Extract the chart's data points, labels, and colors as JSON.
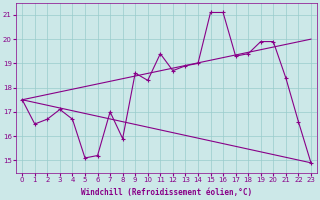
{
  "xlabel": "Windchill (Refroidissement éolien,°C)",
  "xlim": [
    -0.5,
    23.5
  ],
  "ylim": [
    14.5,
    21.5
  ],
  "yticks": [
    15,
    16,
    17,
    18,
    19,
    20,
    21
  ],
  "xticks": [
    0,
    1,
    2,
    3,
    4,
    5,
    6,
    7,
    8,
    9,
    10,
    11,
    12,
    13,
    14,
    15,
    16,
    17,
    18,
    19,
    20,
    21,
    22,
    23
  ],
  "background_color": "#cce8e8",
  "line_color": "#880088",
  "grid_color": "#99cccc",
  "series1_x": [
    0,
    1,
    2,
    3,
    4,
    5,
    6,
    7,
    8,
    9,
    10,
    11,
    12,
    13,
    14,
    15,
    16,
    17,
    18,
    19,
    20,
    21,
    22,
    23
  ],
  "series1_y": [
    17.5,
    16.5,
    16.7,
    17.1,
    16.7,
    15.1,
    15.2,
    17.0,
    15.9,
    18.6,
    18.3,
    19.4,
    18.7,
    18.9,
    19.0,
    21.1,
    21.1,
    19.3,
    19.4,
    19.9,
    19.9,
    18.4,
    16.6,
    14.9
  ],
  "series2_x": [
    0,
    23
  ],
  "series2_y": [
    17.5,
    20.0
  ],
  "series3_x": [
    0,
    23
  ],
  "series3_y": [
    17.5,
    14.9
  ]
}
